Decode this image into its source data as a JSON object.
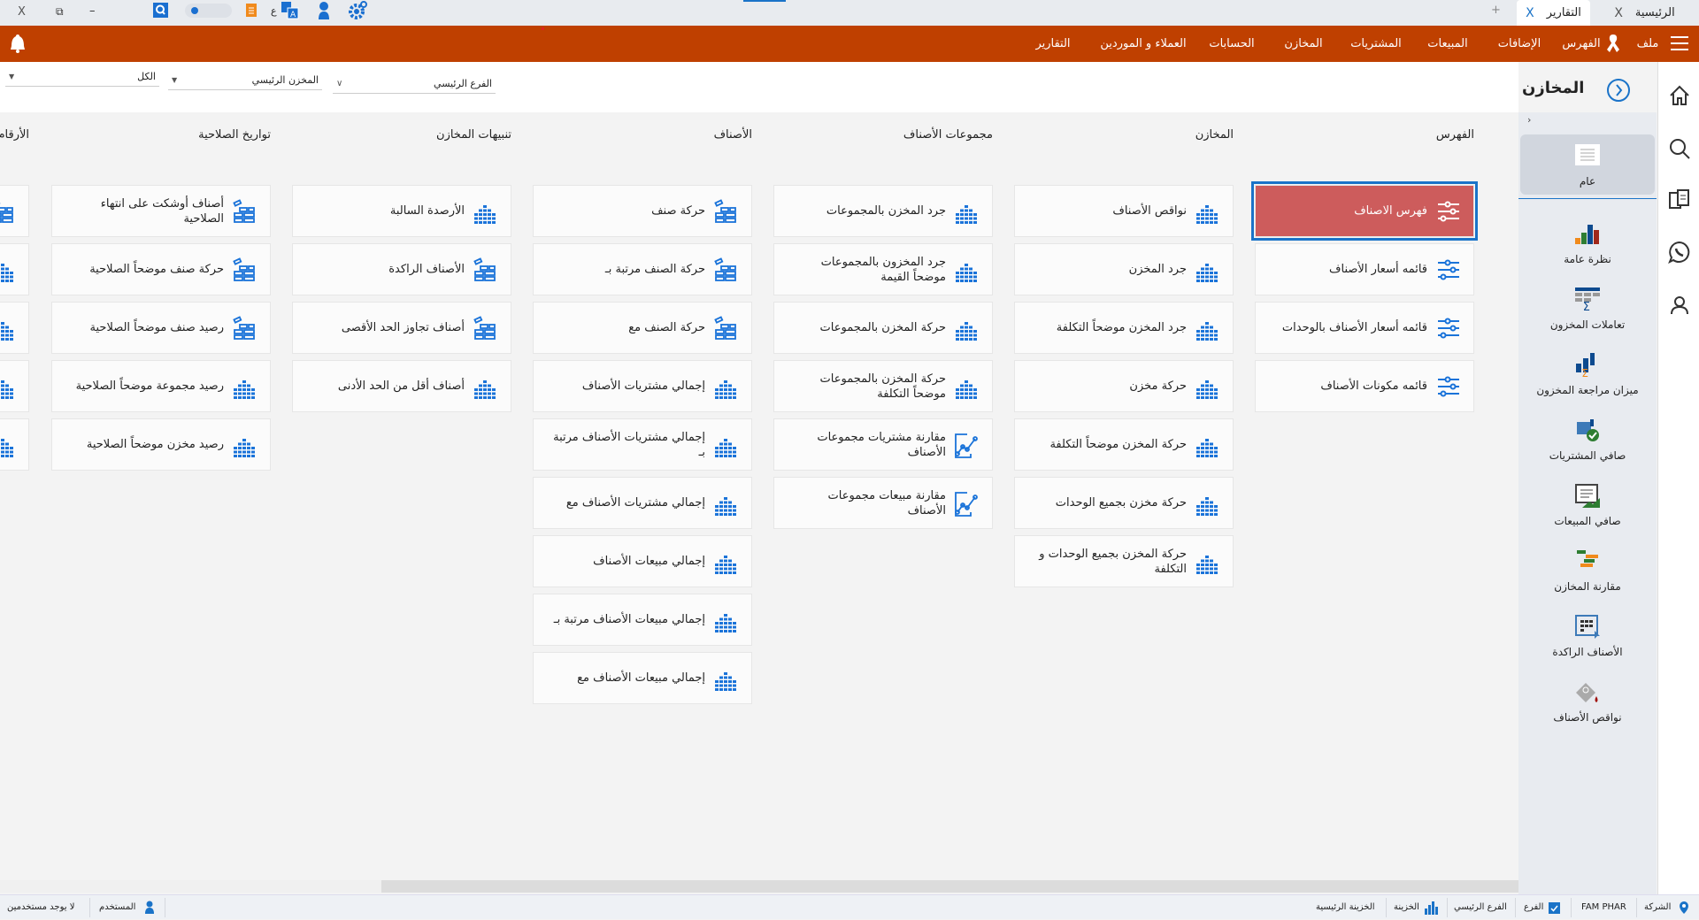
{
  "tabs": {
    "home": "الرئيسية",
    "reports": "التقارير",
    "close": "X",
    "add": "+"
  },
  "window": {
    "close": "X",
    "restore": "⧉",
    "minimize": "–",
    "lang": "ع"
  },
  "menu": {
    "file": "ملف",
    "index": "الفهرس",
    "additions": "الإضافات",
    "sales": "المبيعات",
    "purchases": "المشتريات",
    "stores": "المخازن",
    "accounts": "الحسابات",
    "customers": "العملاء و الموردين",
    "reports": "التقارير"
  },
  "filters": {
    "branch": "الفرع الرئيسي",
    "store": "المخزن الرئيسي",
    "all": "الكل"
  },
  "page": {
    "title": "المخازن"
  },
  "columns": [
    {
      "header": "الفهرس",
      "items": [
        {
          "label": "فهرس الاصناف",
          "icon": "sliders",
          "selected": true
        },
        {
          "label": "قائمه أسعار الأصناف",
          "icon": "sliders"
        },
        {
          "label": "قائمه أسعار الأصناف بالوحدات",
          "icon": "sliders"
        },
        {
          "label": "قائمه مكونات الأصناف",
          "icon": "sliders"
        }
      ]
    },
    {
      "header": "المخازن",
      "items": [
        {
          "label": "نواقص الأصناف",
          "icon": "bars"
        },
        {
          "label": "جرد المخزن",
          "icon": "bars"
        },
        {
          "label": "جرد المخزن موضحاً التكلفة",
          "icon": "bars"
        },
        {
          "label": "حركة مخزن",
          "icon": "bars"
        },
        {
          "label": "حركة المخزن موضحاً التكلفة",
          "icon": "bars"
        },
        {
          "label": "حركة مخزن بجميع الوحدات",
          "icon": "bars"
        },
        {
          "label": "حركة المخزن بجميع الوحدات و التكلفة",
          "icon": "bars"
        }
      ]
    },
    {
      "header": "مجموعات الأصناف",
      "items": [
        {
          "label": "جرد المخزن بالمجموعات",
          "icon": "bars"
        },
        {
          "label": "جرد المخزون بالمجموعات موضحاً القيمة",
          "icon": "bars"
        },
        {
          "label": "حركة المخزن بالمجموعات",
          "icon": "bars"
        },
        {
          "label": "حركة المخزن بالمجموعات موضحاً التكلفة",
          "icon": "bars"
        },
        {
          "label": "مقارنة مشتريات مجموعات الأصناف",
          "icon": "line"
        },
        {
          "label": "مقارنة مبيعات مجموعات الأصناف",
          "icon": "line"
        }
      ]
    },
    {
      "header": "الأصناف",
      "items": [
        {
          "label": "حركة صنف",
          "icon": "boxes"
        },
        {
          "label": "حركة الصنف مرتبة بـ",
          "icon": "boxes"
        },
        {
          "label": "حركة الصنف مع",
          "icon": "boxes"
        },
        {
          "label": "إجمالي مشتريات الأصناف",
          "icon": "bars"
        },
        {
          "label": "إجمالي مشتريات الأصناف مرتبة بـ",
          "icon": "bars"
        },
        {
          "label": "إجمالي مشتريات الأصناف مع",
          "icon": "bars"
        },
        {
          "label": "إجمالي مبيعات الأصناف",
          "icon": "bars"
        },
        {
          "label": "إجمالي مبيعات الأصناف مرتبة بـ",
          "icon": "bars"
        },
        {
          "label": "إجمالي مبيعات الأصناف مع",
          "icon": "bars"
        }
      ]
    },
    {
      "header": "تنبيهات المخازن",
      "items": [
        {
          "label": "الأرصدة السالبة",
          "icon": "bars"
        },
        {
          "label": "الأصناف الراكدة",
          "icon": "boxes"
        },
        {
          "label": "أصناف تجاوز الحد الأقصى",
          "icon": "boxes"
        },
        {
          "label": "أصناف أقل من الحد الأدنى",
          "icon": "bars"
        }
      ]
    },
    {
      "header": "تواريخ الصلاحية",
      "items": [
        {
          "label": "أصناف أوشكت على انتهاء الصلاحية",
          "icon": "boxes"
        },
        {
          "label": "حركة صنف موضحاً الصلاحية",
          "icon": "boxes"
        },
        {
          "label": "رصيد صنف موضحاً الصلاحية",
          "icon": "boxes"
        },
        {
          "label": "رصيد مجموعة موضحاً الصلاحية",
          "icon": "bars"
        },
        {
          "label": "رصيد مخزن موضحاً الصلاحية",
          "icon": "bars"
        }
      ]
    },
    {
      "header": "الأرقام",
      "items": [
        {
          "label": "",
          "icon": "boxes"
        },
        {
          "label": "",
          "icon": "bars"
        },
        {
          "label": "",
          "icon": "bars"
        },
        {
          "label": "",
          "icon": "bars"
        },
        {
          "label": "",
          "icon": "bars"
        }
      ]
    }
  ],
  "sidebar": {
    "items": [
      {
        "label": "عام",
        "icon": "list",
        "selected": true
      },
      {
        "label": "نظرة عامة",
        "icon": "overview-chart"
      },
      {
        "label": "تعاملات المخزون",
        "icon": "table-sigma"
      },
      {
        "label": "ميزان مراجعة المخزون",
        "icon": "chart-sigma"
      },
      {
        "label": "صافي المشتريات",
        "icon": "box-check"
      },
      {
        "label": "صافي المبيعات",
        "icon": "doc-chart"
      },
      {
        "label": "مقارنة المخازن",
        "icon": "gantt"
      },
      {
        "label": "الأصناف الراكدة",
        "icon": "grid-arrow"
      },
      {
        "label": "نواقص الأصناف",
        "icon": "paint-drop"
      }
    ]
  },
  "status": {
    "company": "الشركة",
    "company_value": "FAM PHAR",
    "branch": "الفرع",
    "branch_value": "الفرع الرئيسي",
    "treasury": "الخزينة",
    "treasury_value": "الخزينة الرئيسية",
    "user": "المستخدم",
    "user_value": "لا يوجد مستخدمين"
  },
  "colors": {
    "accent": "#1a73c8",
    "menubar": "#bf4000",
    "selected_card": "#cd5c5c"
  }
}
